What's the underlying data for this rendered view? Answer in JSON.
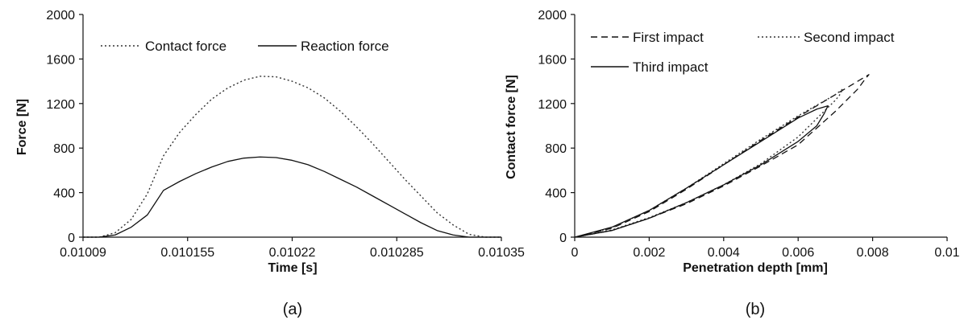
{
  "chart_data": [
    {
      "type": "line",
      "panel_label": "(a)",
      "xlabel": "Time [s]",
      "ylabel": "Force [N]",
      "xlim": [
        0.01009,
        0.01035
      ],
      "ylim": [
        0,
        2000
      ],
      "xticks": [
        0.01009,
        0.010155,
        0.01022,
        0.010285,
        0.01035
      ],
      "xtick_labels": [
        "0.01009",
        "0.010155",
        "0.01022",
        "0.010285",
        "0.01035"
      ],
      "yticks": [
        0,
        400,
        800,
        1200,
        1600,
        2000
      ],
      "ytick_labels": [
        "0",
        "400",
        "800",
        "1200",
        "1600",
        "2000"
      ],
      "legend_position": "top",
      "series": [
        {
          "name": "Contact force",
          "style": "dotted",
          "color": "#333333",
          "x": [
            0.01009,
            0.0101,
            0.01011,
            0.01012,
            0.01013,
            0.01014,
            0.01015,
            0.01016,
            0.01017,
            0.01018,
            0.01019,
            0.0102,
            0.01021,
            0.01022,
            0.01023,
            0.01024,
            0.01025,
            0.01026,
            0.01027,
            0.01028,
            0.01029,
            0.0103,
            0.01031,
            0.01032,
            0.01033,
            0.01034,
            0.01035
          ],
          "y": [
            0,
            0,
            40,
            160,
            390,
            730,
            940,
            1100,
            1240,
            1340,
            1410,
            1445,
            1440,
            1400,
            1340,
            1250,
            1130,
            990,
            840,
            680,
            520,
            370,
            220,
            110,
            25,
            0,
            0
          ]
        },
        {
          "name": "Reaction force",
          "style": "solid",
          "color": "#111111",
          "x": [
            0.01009,
            0.0101,
            0.01011,
            0.01012,
            0.01013,
            0.01014,
            0.01015,
            0.01016,
            0.01017,
            0.01018,
            0.01019,
            0.0102,
            0.01021,
            0.01022,
            0.01023,
            0.01024,
            0.01025,
            0.01026,
            0.01027,
            0.01028,
            0.01029,
            0.0103,
            0.01031,
            0.01032,
            0.01033,
            0.01034,
            0.01035
          ],
          "y": [
            0,
            0,
            20,
            90,
            200,
            420,
            500,
            570,
            630,
            680,
            710,
            720,
            715,
            690,
            650,
            590,
            520,
            450,
            370,
            290,
            210,
            130,
            60,
            20,
            0,
            0,
            0
          ]
        }
      ]
    },
    {
      "type": "line",
      "panel_label": "(b)",
      "xlabel": "Penetration depth [mm]",
      "ylabel": "Contact  force [N]",
      "xlim": [
        0,
        0.01
      ],
      "ylim": [
        0,
        2000
      ],
      "xticks": [
        0,
        0.002,
        0.004,
        0.006,
        0.008,
        0.01
      ],
      "xtick_labels": [
        "0",
        "0.002",
        "0.004",
        "0.006",
        "0.008",
        "0.01"
      ],
      "yticks": [
        0,
        400,
        800,
        1200,
        1600,
        2000
      ],
      "ytick_labels": [
        "0",
        "400",
        "800",
        "1200",
        "1600",
        "2000"
      ],
      "legend_position": "top",
      "series": [
        {
          "name": "First impact",
          "style": "dashed",
          "color": "#111111",
          "x": [
            0,
            0.001,
            0.002,
            0.003,
            0.004,
            0.005,
            0.006,
            0.007,
            0.0075,
            0.0079,
            0.0078,
            0.0076,
            0.007,
            0.006,
            0.005,
            0.004,
            0.003,
            0.002,
            0.001,
            0
          ],
          "y": [
            0,
            80,
            230,
            430,
            650,
            870,
            1080,
            1280,
            1380,
            1460,
            1420,
            1330,
            1130,
            830,
            640,
            460,
            300,
            170,
            60,
            0
          ]
        },
        {
          "name": "Second impact",
          "style": "dotted",
          "color": "#333333",
          "x": [
            0,
            0.001,
            0.002,
            0.003,
            0.004,
            0.005,
            0.006,
            0.007,
            0.0072,
            0.0071,
            0.007,
            0.006,
            0.005,
            0.004,
            0.003,
            0.002,
            0.001,
            0
          ],
          "y": [
            0,
            85,
            240,
            440,
            660,
            880,
            1090,
            1280,
            1330,
            1270,
            1230,
            900,
            660,
            470,
            310,
            175,
            65,
            0
          ]
        },
        {
          "name": "Third impact",
          "style": "solid",
          "color": "#111111",
          "x": [
            0,
            0.001,
            0.002,
            0.003,
            0.004,
            0.005,
            0.006,
            0.0065,
            0.0068,
            0.0067,
            0.0065,
            0.006,
            0.005,
            0.004,
            0.003,
            0.002,
            0.001,
            0
          ],
          "y": [
            0,
            90,
            240,
            440,
            650,
            860,
            1070,
            1150,
            1180,
            1110,
            1000,
            860,
            650,
            470,
            310,
            170,
            60,
            0
          ]
        }
      ]
    }
  ]
}
